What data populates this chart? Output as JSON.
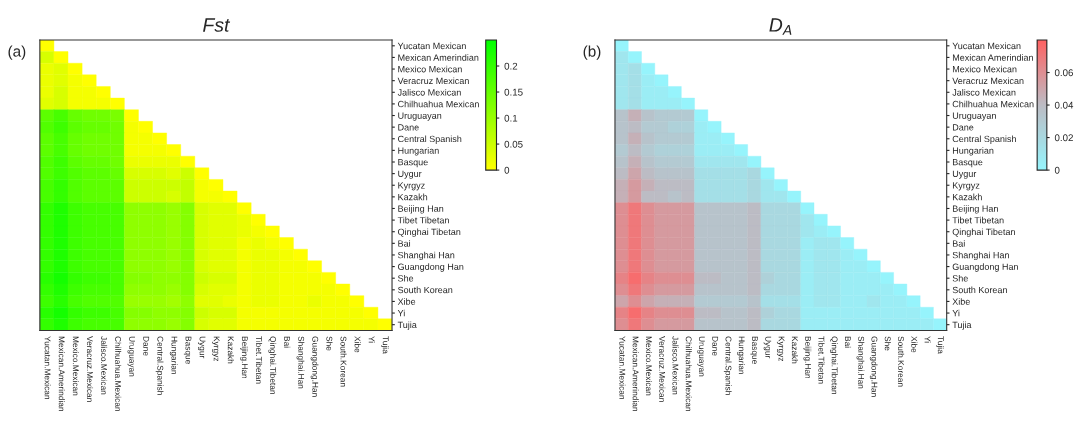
{
  "chart_data": [
    {
      "type": "heatmap",
      "title": "Fst",
      "annotations": [
        "(a)"
      ],
      "categories": [
        "Yucatan.Mexican",
        "Mexican.Amerindian",
        "Mexico.Mexican",
        "Veracruz.Mexican",
        "Jalisco.Mexican",
        "Chilhuahua.Mexican",
        "Uruguayan",
        "Dane",
        "Central.Spanish",
        "Hungarian",
        "Basque",
        "Uygur",
        "Kyrgyz",
        "Kazakh",
        "Beijing.Han",
        "Tibet.Tibetan",
        "Qinghai.Tibetan",
        "Bai",
        "Shanghai.Han",
        "Guangdong.Han",
        "She",
        "South.Korean",
        "Xibe",
        "Yi",
        "Tujia"
      ],
      "y_categories": [
        "Yucatan Mexican",
        "Mexican Amerindian",
        "Mexico Mexican",
        "Veracruz Mexican",
        "Jalisco Mexican",
        "Chilhuahua Mexican",
        "Uruguayan",
        "Dane",
        "Central Spanish",
        "Hungarian",
        "Basque",
        "Uygur",
        "Kyrgyz",
        "Kazakh",
        "Beijing Han",
        "Tibet Tibetan",
        "Qinghai Tibetan",
        "Bai",
        "Shanghai Han",
        "Guangdong Han",
        "She",
        "South Korean",
        "Xibe",
        "Yi",
        "Tujia"
      ],
      "colors": [
        "#ffff00",
        "#00ff00"
      ],
      "clim": [
        0,
        0.25
      ],
      "cticks": [
        0,
        0.05,
        0.1,
        0.15,
        0.2
      ],
      "cells": [
        [
          0,
          null,
          null,
          null,
          null,
          null,
          null,
          null,
          null,
          null,
          null,
          null,
          null,
          null,
          null,
          null,
          null,
          null,
          null,
          null,
          null,
          null,
          null,
          null,
          null
        ],
        [
          0.04,
          0,
          null,
          null,
          null,
          null,
          null,
          null,
          null,
          null,
          null,
          null,
          null,
          null,
          null,
          null,
          null,
          null,
          null,
          null,
          null,
          null,
          null,
          null,
          null
        ],
        [
          0.02,
          0.03,
          0,
          null,
          null,
          null,
          null,
          null,
          null,
          null,
          null,
          null,
          null,
          null,
          null,
          null,
          null,
          null,
          null,
          null,
          null,
          null,
          null,
          null,
          null
        ],
        [
          0.02,
          0.03,
          0.01,
          0,
          null,
          null,
          null,
          null,
          null,
          null,
          null,
          null,
          null,
          null,
          null,
          null,
          null,
          null,
          null,
          null,
          null,
          null,
          null,
          null,
          null
        ],
        [
          0.02,
          0.04,
          0.01,
          0.01,
          0,
          null,
          null,
          null,
          null,
          null,
          null,
          null,
          null,
          null,
          null,
          null,
          null,
          null,
          null,
          null,
          null,
          null,
          null,
          null,
          null
        ],
        [
          0.03,
          0.04,
          0.01,
          0.01,
          0.01,
          0,
          null,
          null,
          null,
          null,
          null,
          null,
          null,
          null,
          null,
          null,
          null,
          null,
          null,
          null,
          null,
          null,
          null,
          null,
          null
        ],
        [
          0.16,
          0.18,
          0.15,
          0.14,
          0.14,
          0.13,
          0,
          null,
          null,
          null,
          null,
          null,
          null,
          null,
          null,
          null,
          null,
          null,
          null,
          null,
          null,
          null,
          null,
          null,
          null
        ],
        [
          0.17,
          0.19,
          0.16,
          0.15,
          0.15,
          0.14,
          0.01,
          0,
          null,
          null,
          null,
          null,
          null,
          null,
          null,
          null,
          null,
          null,
          null,
          null,
          null,
          null,
          null,
          null,
          null
        ],
        [
          0.16,
          0.18,
          0.15,
          0.14,
          0.14,
          0.14,
          0.01,
          0.01,
          0,
          null,
          null,
          null,
          null,
          null,
          null,
          null,
          null,
          null,
          null,
          null,
          null,
          null,
          null,
          null,
          null
        ],
        [
          0.16,
          0.18,
          0.15,
          0.14,
          0.14,
          0.14,
          0.01,
          0.01,
          0.01,
          0,
          null,
          null,
          null,
          null,
          null,
          null,
          null,
          null,
          null,
          null,
          null,
          null,
          null,
          null,
          null
        ],
        [
          0.17,
          0.19,
          0.16,
          0.15,
          0.15,
          0.14,
          0.02,
          0.02,
          0.02,
          0.02,
          0,
          null,
          null,
          null,
          null,
          null,
          null,
          null,
          null,
          null,
          null,
          null,
          null,
          null,
          null
        ],
        [
          0.17,
          0.19,
          0.17,
          0.16,
          0.16,
          0.15,
          0.04,
          0.04,
          0.04,
          0.03,
          0.05,
          0,
          null,
          null,
          null,
          null,
          null,
          null,
          null,
          null,
          null,
          null,
          null,
          null,
          null
        ],
        [
          0.18,
          0.2,
          0.17,
          0.16,
          0.16,
          0.16,
          0.05,
          0.05,
          0.05,
          0.05,
          0.06,
          0.01,
          0,
          null,
          null,
          null,
          null,
          null,
          null,
          null,
          null,
          null,
          null,
          null,
          null
        ],
        [
          0.18,
          0.2,
          0.17,
          0.16,
          0.16,
          0.16,
          0.05,
          0.05,
          0.05,
          0.04,
          0.06,
          0.01,
          0.01,
          0,
          null,
          null,
          null,
          null,
          null,
          null,
          null,
          null,
          null,
          null,
          null
        ],
        [
          0.2,
          0.22,
          0.19,
          0.18,
          0.18,
          0.18,
          0.11,
          0.11,
          0.11,
          0.1,
          0.12,
          0.04,
          0.03,
          0.03,
          0,
          null,
          null,
          null,
          null,
          null,
          null,
          null,
          null,
          null,
          null
        ],
        [
          0.2,
          0.22,
          0.19,
          0.18,
          0.18,
          0.18,
          0.11,
          0.11,
          0.11,
          0.1,
          0.12,
          0.04,
          0.03,
          0.03,
          0.02,
          0,
          null,
          null,
          null,
          null,
          null,
          null,
          null,
          null,
          null
        ],
        [
          0.2,
          0.22,
          0.19,
          0.18,
          0.18,
          0.18,
          0.11,
          0.11,
          0.11,
          0.1,
          0.12,
          0.04,
          0.03,
          0.03,
          0.02,
          0.01,
          0,
          null,
          null,
          null,
          null,
          null,
          null,
          null,
          null
        ],
        [
          0.2,
          0.22,
          0.19,
          0.18,
          0.18,
          0.18,
          0.11,
          0.11,
          0.11,
          0.1,
          0.12,
          0.04,
          0.03,
          0.03,
          0.01,
          0.02,
          0.01,
          0,
          null,
          null,
          null,
          null,
          null,
          null,
          null
        ],
        [
          0.2,
          0.22,
          0.19,
          0.18,
          0.18,
          0.18,
          0.11,
          0.11,
          0.11,
          0.1,
          0.12,
          0.04,
          0.03,
          0.03,
          0.01,
          0.02,
          0.02,
          0.01,
          0,
          null,
          null,
          null,
          null,
          null,
          null
        ],
        [
          0.2,
          0.22,
          0.19,
          0.18,
          0.18,
          0.18,
          0.11,
          0.11,
          0.11,
          0.1,
          0.12,
          0.04,
          0.03,
          0.03,
          0.01,
          0.02,
          0.02,
          0.01,
          0.01,
          0,
          null,
          null,
          null,
          null,
          null
        ],
        [
          0.21,
          0.23,
          0.2,
          0.19,
          0.19,
          0.18,
          0.12,
          0.12,
          0.11,
          0.11,
          0.12,
          0.05,
          0.04,
          0.04,
          0.01,
          0.02,
          0.02,
          0.01,
          0.01,
          0.01,
          0,
          null,
          null,
          null,
          null
        ],
        [
          0.2,
          0.22,
          0.19,
          0.18,
          0.18,
          0.18,
          0.11,
          0.11,
          0.11,
          0.1,
          0.12,
          0.04,
          0.03,
          0.03,
          0.01,
          0.02,
          0.02,
          0.01,
          0.01,
          0.01,
          0.01,
          0,
          null,
          null,
          null
        ],
        [
          0.19,
          0.21,
          0.18,
          0.17,
          0.17,
          0.17,
          0.1,
          0.1,
          0.1,
          0.09,
          0.11,
          0.03,
          0.03,
          0.02,
          0.01,
          0.02,
          0.02,
          0.01,
          0.01,
          0.02,
          0.01,
          0.01,
          0,
          null,
          null
        ],
        [
          0.21,
          0.23,
          0.2,
          0.19,
          0.19,
          0.18,
          0.12,
          0.12,
          0.11,
          0.11,
          0.12,
          0.05,
          0.04,
          0.04,
          0.01,
          0.01,
          0.01,
          0.01,
          0.01,
          0.01,
          0.01,
          0.01,
          0.01,
          0,
          null
        ],
        [
          0.2,
          0.22,
          0.19,
          0.18,
          0.18,
          0.18,
          0.11,
          0.11,
          0.11,
          0.1,
          0.12,
          0.04,
          0.03,
          0.03,
          0.01,
          0.01,
          0.01,
          0.01,
          0.01,
          0.01,
          0.01,
          0.01,
          0.01,
          0.01,
          0
        ]
      ]
    },
    {
      "type": "heatmap",
      "title": "D$_{A}$",
      "annotations": [
        "(b)"
      ],
      "categories": [
        "Yucatan.Mexican",
        "Mexican.Amerindian",
        "Mexico.Mexican",
        "Veracruz.Mexican",
        "Jalisco.Mexican",
        "Chilhuahua.Mexican",
        "Uruguayan",
        "Dane",
        "Central.Spanish",
        "Hungarian",
        "Basque",
        "Uygur",
        "Kyrgyz",
        "Kazakh",
        "Beijing.Han",
        "Tibet.Tibetan",
        "Qinghai.Tibetan",
        "Bai",
        "Shanghai.Han",
        "Guangdong.Han",
        "She",
        "South.Korean",
        "Xibe",
        "Yi",
        "Tujia"
      ],
      "y_categories": [
        "Yucatan Mexican",
        "Mexican Amerindian",
        "Mexico Mexican",
        "Veracruz Mexican",
        "Jalisco Mexican",
        "Chilhuahua Mexican",
        "Uruguayan",
        "Dane",
        "Central Spanish",
        "Hungarian",
        "Basque",
        "Uygur",
        "Kyrgyz",
        "Kazakh",
        "Beijing Han",
        "Tibet Tibetan",
        "Qinghai Tibetan",
        "Bai",
        "Shanghai Han",
        "Guangdong Han",
        "She",
        "South Korean",
        "Xibe",
        "Yi",
        "Tujia"
      ],
      "colors": [
        "#96f4fc",
        "#bcbcc4",
        "#ff6262"
      ],
      "clim": [
        0,
        0.08
      ],
      "cticks": [
        0,
        0.02,
        0.04,
        0.06
      ],
      "cells": [
        [
          0,
          null,
          null,
          null,
          null,
          null,
          null,
          null,
          null,
          null,
          null,
          null,
          null,
          null,
          null,
          null,
          null,
          null,
          null,
          null,
          null,
          null,
          null,
          null,
          null
        ],
        [
          0.01,
          0,
          null,
          null,
          null,
          null,
          null,
          null,
          null,
          null,
          null,
          null,
          null,
          null,
          null,
          null,
          null,
          null,
          null,
          null,
          null,
          null,
          null,
          null,
          null
        ],
        [
          0.01,
          0.015,
          0,
          null,
          null,
          null,
          null,
          null,
          null,
          null,
          null,
          null,
          null,
          null,
          null,
          null,
          null,
          null,
          null,
          null,
          null,
          null,
          null,
          null,
          null
        ],
        [
          0.01,
          0.015,
          0.005,
          0,
          null,
          null,
          null,
          null,
          null,
          null,
          null,
          null,
          null,
          null,
          null,
          null,
          null,
          null,
          null,
          null,
          null,
          null,
          null,
          null,
          null
        ],
        [
          0.01,
          0.015,
          0.005,
          0.005,
          0,
          null,
          null,
          null,
          null,
          null,
          null,
          null,
          null,
          null,
          null,
          null,
          null,
          null,
          null,
          null,
          null,
          null,
          null,
          null,
          null
        ],
        [
          0.01,
          0.015,
          0.005,
          0.005,
          0.005,
          0,
          null,
          null,
          null,
          null,
          null,
          null,
          null,
          null,
          null,
          null,
          null,
          null,
          null,
          null,
          null,
          null,
          null,
          null,
          null
        ],
        [
          0.035,
          0.045,
          0.035,
          0.03,
          0.03,
          0.03,
          0,
          null,
          null,
          null,
          null,
          null,
          null,
          null,
          null,
          null,
          null,
          null,
          null,
          null,
          null,
          null,
          null,
          null,
          null
        ],
        [
          0.035,
          0.04,
          0.03,
          0.03,
          0.025,
          0.025,
          0.005,
          0,
          null,
          null,
          null,
          null,
          null,
          null,
          null,
          null,
          null,
          null,
          null,
          null,
          null,
          null,
          null,
          null,
          null
        ],
        [
          0.035,
          0.045,
          0.035,
          0.03,
          0.03,
          0.03,
          0.005,
          0.005,
          0,
          null,
          null,
          null,
          null,
          null,
          null,
          null,
          null,
          null,
          null,
          null,
          null,
          null,
          null,
          null,
          null
        ],
        [
          0.03,
          0.04,
          0.03,
          0.025,
          0.025,
          0.025,
          0.005,
          0.005,
          0.005,
          0,
          null,
          null,
          null,
          null,
          null,
          null,
          null,
          null,
          null,
          null,
          null,
          null,
          null,
          null,
          null
        ],
        [
          0.035,
          0.045,
          0.035,
          0.03,
          0.03,
          0.03,
          0.01,
          0.01,
          0.01,
          0.01,
          0,
          null,
          null,
          null,
          null,
          null,
          null,
          null,
          null,
          null,
          null,
          null,
          null,
          null,
          null
        ],
        [
          0.04,
          0.05,
          0.04,
          0.035,
          0.035,
          0.035,
          0.015,
          0.015,
          0.015,
          0.015,
          0.02,
          0,
          null,
          null,
          null,
          null,
          null,
          null,
          null,
          null,
          null,
          null,
          null,
          null,
          null
        ],
        [
          0.045,
          0.055,
          0.045,
          0.04,
          0.04,
          0.04,
          0.015,
          0.015,
          0.015,
          0.015,
          0.02,
          0.01,
          0,
          null,
          null,
          null,
          null,
          null,
          null,
          null,
          null,
          null,
          null,
          null,
          null
        ],
        [
          0.045,
          0.055,
          0.04,
          0.04,
          0.035,
          0.04,
          0.015,
          0.015,
          0.015,
          0.015,
          0.02,
          0.01,
          0.01,
          0,
          null,
          null,
          null,
          null,
          null,
          null,
          null,
          null,
          null,
          null,
          null
        ],
        [
          0.06,
          0.07,
          0.06,
          0.055,
          0.055,
          0.055,
          0.035,
          0.035,
          0.035,
          0.035,
          0.04,
          0.02,
          0.02,
          0.02,
          0,
          null,
          null,
          null,
          null,
          null,
          null,
          null,
          null,
          null,
          null
        ],
        [
          0.06,
          0.07,
          0.06,
          0.055,
          0.055,
          0.055,
          0.035,
          0.035,
          0.035,
          0.035,
          0.04,
          0.02,
          0.02,
          0.02,
          0.01,
          0,
          null,
          null,
          null,
          null,
          null,
          null,
          null,
          null,
          null
        ],
        [
          0.06,
          0.07,
          0.06,
          0.055,
          0.055,
          0.055,
          0.035,
          0.035,
          0.035,
          0.035,
          0.04,
          0.02,
          0.02,
          0.02,
          0.01,
          0.005,
          0,
          null,
          null,
          null,
          null,
          null,
          null,
          null,
          null
        ],
        [
          0.06,
          0.07,
          0.06,
          0.055,
          0.055,
          0.055,
          0.035,
          0.035,
          0.035,
          0.035,
          0.04,
          0.02,
          0.02,
          0.02,
          0.005,
          0.01,
          0.01,
          0,
          null,
          null,
          null,
          null,
          null,
          null,
          null
        ],
        [
          0.06,
          0.07,
          0.06,
          0.055,
          0.055,
          0.055,
          0.035,
          0.035,
          0.035,
          0.035,
          0.04,
          0.02,
          0.02,
          0.02,
          0.005,
          0.01,
          0.01,
          0.005,
          0,
          null,
          null,
          null,
          null,
          null,
          null
        ],
        [
          0.06,
          0.07,
          0.06,
          0.055,
          0.055,
          0.055,
          0.035,
          0.035,
          0.035,
          0.035,
          0.04,
          0.02,
          0.02,
          0.02,
          0.005,
          0.01,
          0.01,
          0.005,
          0.005,
          0,
          null,
          null,
          null,
          null,
          null
        ],
        [
          0.065,
          0.075,
          0.065,
          0.06,
          0.06,
          0.06,
          0.04,
          0.04,
          0.035,
          0.035,
          0.04,
          0.025,
          0.02,
          0.02,
          0.005,
          0.01,
          0.01,
          0.005,
          0.005,
          0.005,
          0,
          null,
          null,
          null,
          null
        ],
        [
          0.06,
          0.07,
          0.06,
          0.055,
          0.055,
          0.055,
          0.035,
          0.035,
          0.035,
          0.035,
          0.04,
          0.02,
          0.02,
          0.02,
          0.005,
          0.01,
          0.01,
          0.005,
          0.005,
          0.005,
          0.005,
          0,
          null,
          null,
          null
        ],
        [
          0.05,
          0.06,
          0.05,
          0.045,
          0.045,
          0.045,
          0.03,
          0.03,
          0.03,
          0.03,
          0.035,
          0.015,
          0.015,
          0.015,
          0.005,
          0.01,
          0.01,
          0.005,
          0.005,
          0.01,
          0.005,
          0.005,
          0,
          null,
          null
        ],
        [
          0.065,
          0.075,
          0.065,
          0.06,
          0.06,
          0.06,
          0.04,
          0.04,
          0.035,
          0.035,
          0.04,
          0.025,
          0.02,
          0.02,
          0.005,
          0.005,
          0.005,
          0.005,
          0.005,
          0.005,
          0.005,
          0.005,
          0.005,
          0,
          null
        ],
        [
          0.06,
          0.07,
          0.06,
          0.055,
          0.055,
          0.055,
          0.035,
          0.035,
          0.035,
          0.035,
          0.04,
          0.02,
          0.02,
          0.02,
          0.005,
          0.005,
          0.005,
          0.005,
          0.005,
          0.005,
          0.005,
          0.005,
          0.005,
          0.005,
          0
        ]
      ]
    }
  ]
}
